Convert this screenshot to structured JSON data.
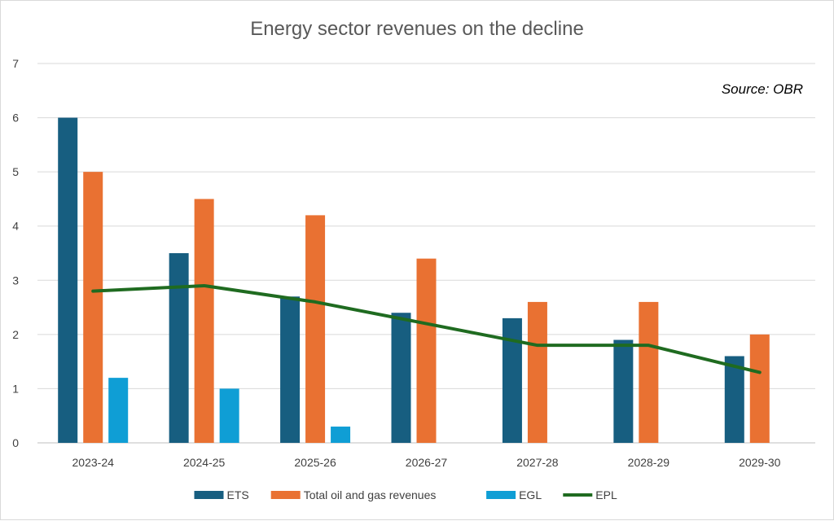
{
  "chart_data": {
    "type": "bar",
    "title": "Energy sector revenues on the decline",
    "annotation": "Source: OBR",
    "categories": [
      "2023-24",
      "2024-25",
      "2025-26",
      "2026-27",
      "2027-28",
      "2028-29",
      "2029-30"
    ],
    "ylim": [
      0,
      7
    ],
    "yticks": [
      0,
      1,
      2,
      3,
      4,
      5,
      6,
      7
    ],
    "grid": true,
    "legend_position": "bottom",
    "series": [
      {
        "name": "ETS",
        "kind": "bar",
        "color": "#175e80",
        "values": [
          6.0,
          3.5,
          2.7,
          2.4,
          2.3,
          1.9,
          1.6
        ]
      },
      {
        "name": "Total oil and gas revenues",
        "kind": "bar",
        "color": "#e97132",
        "values": [
          5.0,
          4.5,
          4.2,
          3.4,
          2.6,
          2.6,
          2.0
        ]
      },
      {
        "name": "EGL",
        "kind": "bar",
        "color": "#0f9ed5",
        "values": [
          1.2,
          1.0,
          0.3,
          null,
          null,
          null,
          null
        ]
      },
      {
        "name": "EPL",
        "kind": "line",
        "color": "#1f6b20",
        "values": [
          2.8,
          2.9,
          2.6,
          2.2,
          1.8,
          1.8,
          1.3
        ]
      }
    ]
  }
}
